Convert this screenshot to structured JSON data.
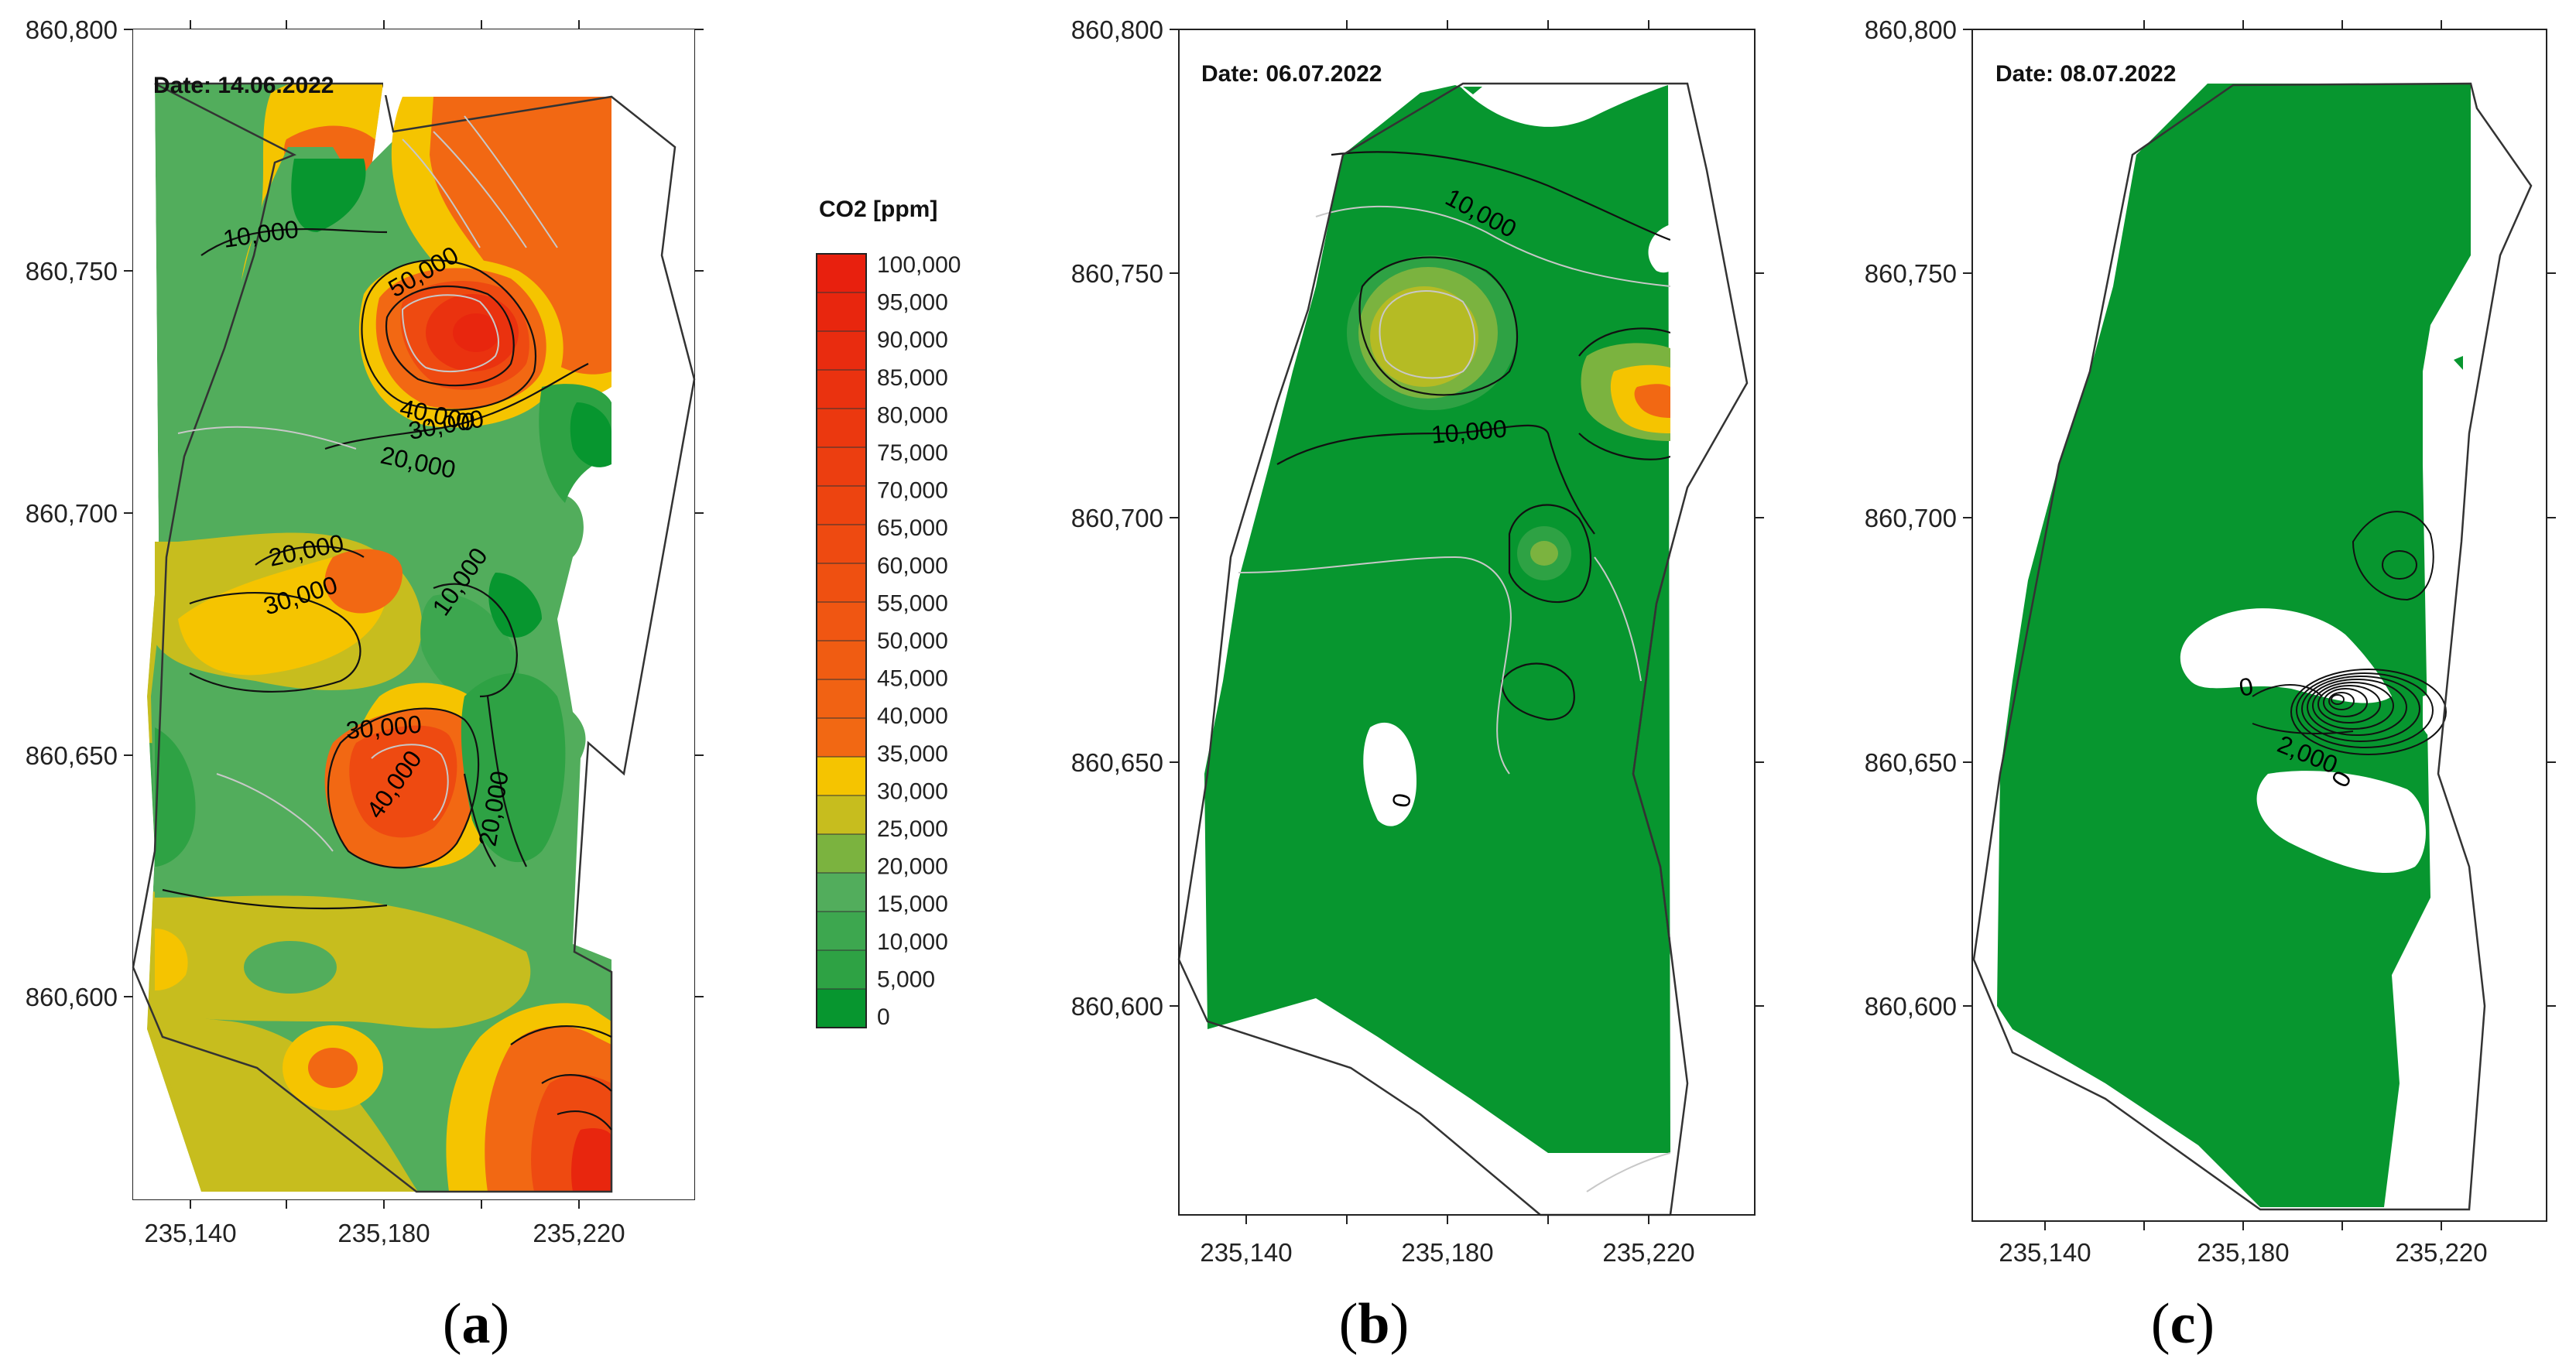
{
  "colors": {
    "green_dark": "#07962f",
    "green_mid": "#2ea244",
    "green_light": "#52ad5c",
    "olive": "#7bb33f",
    "yellow_green": "#b5bb24",
    "yellow": "#f5c400",
    "orange": "#f26a12",
    "orange_red": "#ee4a0f",
    "red": "#e8200e",
    "contour_black": "#111111",
    "contour_grey": "#c8c8c8"
  },
  "axes": {
    "x_ticks": [
      "235,140",
      "235,180",
      "235,220"
    ],
    "y_ticks": [
      "860,800",
      "860,750",
      "860,700",
      "860,650",
      "860,600"
    ]
  },
  "panels": [
    {
      "id": "a",
      "caption_open": "(",
      "caption_letter": "a",
      "caption_close": ")",
      "date_label": "Date: 14.06.2022",
      "contour_labels": [
        "10,000",
        "50,000",
        "40,000",
        "30,000",
        "20,000",
        "20,000",
        "30,000",
        "10,000",
        "30,000",
        "40,000",
        "20,000"
      ]
    },
    {
      "id": "b",
      "caption_open": "(",
      "caption_letter": "b",
      "caption_close": ")",
      "date_label": "Date: 06.07.2022",
      "contour_labels": [
        "10,000",
        "10,000",
        "0"
      ]
    },
    {
      "id": "c",
      "caption_open": "(",
      "caption_letter": "c",
      "caption_close": ")",
      "date_label": "Date: 08.07.2022",
      "contour_labels": [
        "0",
        "2,000",
        "0"
      ]
    }
  ],
  "legend": {
    "title": "CO2 [ppm]",
    "labels": [
      "100,000",
      "95,000",
      "90,000",
      "85,000",
      "80,000",
      "75,000",
      "70,000",
      "65,000",
      "60,000",
      "55,000",
      "50,000",
      "45,000",
      "40,000",
      "35,000",
      "30,000",
      "25,000",
      "20,000",
      "15,000",
      "10,000",
      "5,000",
      "0"
    ],
    "band_colors": [
      "#e8200e",
      "#e8260e",
      "#e92c0f",
      "#ea320f",
      "#eb380f",
      "#ec3e10",
      "#ed4410",
      "#ee4a11",
      "#ef5011",
      "#f05612",
      "#f05c12",
      "#f16213",
      "#f26813",
      "#f5c400",
      "#c7bd1e",
      "#7bb33f",
      "#52ad5c",
      "#3da74f",
      "#2ea244",
      "#07962f"
    ]
  }
}
